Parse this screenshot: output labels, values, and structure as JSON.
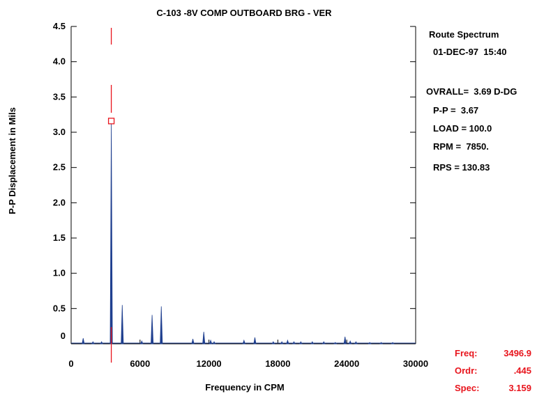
{
  "chart_data": {
    "type": "line",
    "title": "C-103     -8V    COMP OUTBOARD BRG - VER",
    "xlabel": "Frequency in CPM",
    "ylabel": "P-P Displacement in Mils",
    "xlim": [
      0,
      30000
    ],
    "ylim": [
      0,
      4.5
    ],
    "x_ticks": [
      "0",
      "6000",
      "12000",
      "18000",
      "24000",
      "30000"
    ],
    "x_tick_values": [
      0,
      6000,
      12000,
      18000,
      24000,
      30000
    ],
    "y_ticks": [
      "0",
      "0.5",
      "1.0",
      "1.5",
      "2.0",
      "2.5",
      "3.0",
      "3.5",
      "4.0",
      "4.5"
    ],
    "y_tick_values": [
      0,
      0.5,
      1.0,
      1.5,
      2.0,
      2.5,
      3.0,
      3.5,
      4.0,
      4.5
    ],
    "series": [
      {
        "color": "#1f3f8f",
        "peaks": [
          {
            "x": 1050,
            "y": 0.08
          },
          {
            "x": 1900,
            "y": 0.03
          },
          {
            "x": 2650,
            "y": 0.03
          },
          {
            "x": 3497,
            "y": 3.16
          },
          {
            "x": 4450,
            "y": 0.55
          },
          {
            "x": 6150,
            "y": 0.04
          },
          {
            "x": 7050,
            "y": 0.41
          },
          {
            "x": 7850,
            "y": 0.53
          },
          {
            "x": 10600,
            "y": 0.07
          },
          {
            "x": 11550,
            "y": 0.17
          },
          {
            "x": 12150,
            "y": 0.05
          },
          {
            "x": 12450,
            "y": 0.03
          },
          {
            "x": 15050,
            "y": 0.05
          },
          {
            "x": 16000,
            "y": 0.09
          },
          {
            "x": 17600,
            "y": 0.03
          },
          {
            "x": 18350,
            "y": 0.03
          },
          {
            "x": 18850,
            "y": 0.05
          },
          {
            "x": 19400,
            "y": 0.03
          },
          {
            "x": 20000,
            "y": 0.03
          },
          {
            "x": 21000,
            "y": 0.03
          },
          {
            "x": 22000,
            "y": 0.03
          },
          {
            "x": 23000,
            "y": 0.02
          },
          {
            "x": 23850,
            "y": 0.1
          },
          {
            "x": 24300,
            "y": 0.04
          },
          {
            "x": 24800,
            "y": 0.03
          },
          {
            "x": 26000,
            "y": 0.02
          },
          {
            "x": 27000,
            "y": 0.02
          },
          {
            "x": 28000,
            "y": 0.02
          }
        ]
      }
    ],
    "cursor": {
      "x": 3496.9,
      "y": 3.159,
      "color": "#e8141c"
    },
    "grid": false
  },
  "info": {
    "lines": [
      "Route Spectrum",
      "01-DEC-97  15:40",
      "OVRALL=  3.69 D-DG",
      "P-P =  3.67",
      "LOAD = 100.0",
      "RPM =  7850.",
      "RPS = 130.83"
    ]
  },
  "cursor_readout": [
    {
      "label": "Freq:",
      "value": "3496.9"
    },
    {
      "label": "Ordr:",
      "value": ".445"
    },
    {
      "label": "Spec:",
      "value": "3.159"
    }
  ]
}
